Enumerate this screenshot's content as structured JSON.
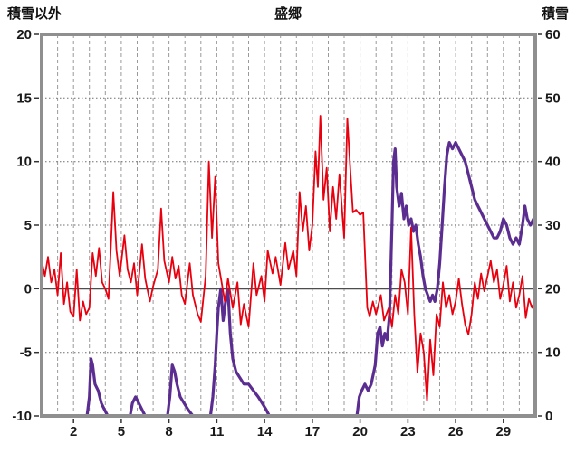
{
  "header": {
    "left": "積雪以外",
    "center": "盛郷",
    "right": "積雪"
  },
  "chart_data": {
    "type": "line",
    "title": "盛郷",
    "x_range": [
      0,
      31
    ],
    "x_ticks": [
      2,
      5,
      8,
      11,
      14,
      17,
      20,
      23,
      26,
      29
    ],
    "grid": {
      "v_start": 1,
      "v_end": 30,
      "v_step": 1
    },
    "left_axis": {
      "label": "積雪以外",
      "range": [
        -10,
        20
      ],
      "ticks": [
        20,
        15,
        10,
        5,
        0,
        -5,
        -10
      ]
    },
    "right_axis": {
      "label": "積雪",
      "range": [
        0,
        60
      ],
      "ticks": [
        60,
        50,
        40,
        30,
        20,
        10,
        0
      ]
    },
    "zero_value": 0,
    "colors": {
      "frame": "#8f8f8f",
      "grid_v": "#9a9a9a",
      "grid_h": "#6f6f6f",
      "zero": "#4d4d4d",
      "tick": "#333333",
      "temp": "#e8000e",
      "snow": "#5c2d91"
    },
    "series": [
      {
        "name": "積雪",
        "axis": "right",
        "color_key": "snow",
        "width": 3.2,
        "points": [
          [
            0,
            0
          ],
          [
            2.85,
            0
          ],
          [
            3.0,
            3
          ],
          [
            3.1,
            9
          ],
          [
            3.2,
            8
          ],
          [
            3.35,
            5
          ],
          [
            3.55,
            4
          ],
          [
            3.75,
            2
          ],
          [
            3.95,
            1
          ],
          [
            4.15,
            0
          ],
          [
            5.55,
            0
          ],
          [
            5.7,
            2
          ],
          [
            5.9,
            3
          ],
          [
            6.1,
            2
          ],
          [
            6.3,
            1
          ],
          [
            6.5,
            0
          ],
          [
            7.9,
            0
          ],
          [
            8.05,
            3
          ],
          [
            8.2,
            8
          ],
          [
            8.35,
            7
          ],
          [
            8.5,
            5
          ],
          [
            8.7,
            3
          ],
          [
            8.95,
            2
          ],
          [
            9.2,
            1
          ],
          [
            9.5,
            0
          ],
          [
            10.6,
            0
          ],
          [
            10.75,
            3
          ],
          [
            10.9,
            8
          ],
          [
            11.0,
            13
          ],
          [
            11.1,
            17
          ],
          [
            11.25,
            20
          ],
          [
            11.4,
            15
          ],
          [
            11.55,
            18
          ],
          [
            11.7,
            20
          ],
          [
            11.85,
            13
          ],
          [
            12.0,
            9
          ],
          [
            12.2,
            7
          ],
          [
            12.45,
            6
          ],
          [
            12.7,
            5
          ],
          [
            13.0,
            5
          ],
          [
            13.3,
            4
          ],
          [
            13.6,
            3
          ],
          [
            13.85,
            2
          ],
          [
            14.1,
            1
          ],
          [
            14.3,
            0
          ],
          [
            19.8,
            0
          ],
          [
            19.95,
            3
          ],
          [
            20.1,
            4
          ],
          [
            20.3,
            5
          ],
          [
            20.5,
            4
          ],
          [
            20.7,
            5
          ],
          [
            20.95,
            8
          ],
          [
            21.1,
            13
          ],
          [
            21.25,
            14
          ],
          [
            21.4,
            11
          ],
          [
            21.55,
            13
          ],
          [
            21.7,
            12
          ],
          [
            21.85,
            16
          ],
          [
            22.0,
            30
          ],
          [
            22.1,
            40
          ],
          [
            22.2,
            42
          ],
          [
            22.3,
            36
          ],
          [
            22.45,
            33
          ],
          [
            22.6,
            35
          ],
          [
            22.75,
            31
          ],
          [
            22.9,
            33
          ],
          [
            23.05,
            30
          ],
          [
            23.2,
            31
          ],
          [
            23.35,
            29
          ],
          [
            23.5,
            30
          ],
          [
            23.65,
            27
          ],
          [
            23.8,
            25
          ],
          [
            23.95,
            22
          ],
          [
            24.1,
            20
          ],
          [
            24.25,
            19
          ],
          [
            24.4,
            18
          ],
          [
            24.55,
            19
          ],
          [
            24.7,
            18
          ],
          [
            24.85,
            20
          ],
          [
            25.0,
            24
          ],
          [
            25.15,
            30
          ],
          [
            25.3,
            36
          ],
          [
            25.45,
            41
          ],
          [
            25.6,
            43
          ],
          [
            25.8,
            42
          ],
          [
            26.0,
            43
          ],
          [
            26.2,
            42
          ],
          [
            26.4,
            41
          ],
          [
            26.6,
            40
          ],
          [
            26.8,
            38
          ],
          [
            27.0,
            36
          ],
          [
            27.2,
            34
          ],
          [
            27.4,
            33
          ],
          [
            27.6,
            32
          ],
          [
            27.8,
            31
          ],
          [
            28.0,
            30
          ],
          [
            28.2,
            29
          ],
          [
            28.4,
            28
          ],
          [
            28.6,
            28
          ],
          [
            28.8,
            29
          ],
          [
            29.0,
            31
          ],
          [
            29.2,
            30
          ],
          [
            29.4,
            28
          ],
          [
            29.6,
            27
          ],
          [
            29.8,
            28
          ],
          [
            30.0,
            27
          ],
          [
            30.2,
            30
          ],
          [
            30.35,
            33
          ],
          [
            30.5,
            31
          ],
          [
            30.7,
            30
          ],
          [
            30.9,
            31
          ],
          [
            31,
            30
          ]
        ]
      },
      {
        "name": "積雪以外",
        "axis": "left",
        "color_key": "temp",
        "width": 1.8,
        "points": [
          [
            0,
            2.2
          ],
          [
            0.2,
            1.0
          ],
          [
            0.4,
            2.5
          ],
          [
            0.6,
            0.5
          ],
          [
            0.8,
            1.5
          ],
          [
            1.0,
            -0.5
          ],
          [
            1.2,
            2.8
          ],
          [
            1.4,
            -1.2
          ],
          [
            1.6,
            0.5
          ],
          [
            1.8,
            -1.8
          ],
          [
            2.0,
            -2.2
          ],
          [
            2.2,
            1.5
          ],
          [
            2.4,
            -2.5
          ],
          [
            2.6,
            -1.0
          ],
          [
            2.8,
            -2.0
          ],
          [
            3.0,
            -1.5
          ],
          [
            3.2,
            2.8
          ],
          [
            3.4,
            1.0
          ],
          [
            3.6,
            3.2
          ],
          [
            3.8,
            0.5
          ],
          [
            4.0,
            0.0
          ],
          [
            4.2,
            -0.8
          ],
          [
            4.5,
            7.6
          ],
          [
            4.7,
            3.0
          ],
          [
            4.9,
            1.0
          ],
          [
            5.2,
            4.2
          ],
          [
            5.4,
            1.5
          ],
          [
            5.6,
            0.5
          ],
          [
            5.8,
            2.0
          ],
          [
            6.0,
            -0.5
          ],
          [
            6.3,
            3.5
          ],
          [
            6.5,
            0.8
          ],
          [
            6.8,
            -1.0
          ],
          [
            7.0,
            0.2
          ],
          [
            7.3,
            1.5
          ],
          [
            7.5,
            6.3
          ],
          [
            7.7,
            2.2
          ],
          [
            8.0,
            0.5
          ],
          [
            8.2,
            2.5
          ],
          [
            8.4,
            0.8
          ],
          [
            8.6,
            1.8
          ],
          [
            8.8,
            -0.5
          ],
          [
            9.0,
            -1.2
          ],
          [
            9.3,
            2.0
          ],
          [
            9.5,
            -0.5
          ],
          [
            9.8,
            -2.0
          ],
          [
            10.0,
            -2.6
          ],
          [
            10.3,
            1.0
          ],
          [
            10.5,
            10.0
          ],
          [
            10.7,
            4.0
          ],
          [
            10.9,
            8.8
          ],
          [
            11.1,
            2.0
          ],
          [
            11.3,
            0.5
          ],
          [
            11.5,
            -1.0
          ],
          [
            11.7,
            0.8
          ],
          [
            12.0,
            -1.5
          ],
          [
            12.3,
            0.5
          ],
          [
            12.5,
            -2.8
          ],
          [
            12.7,
            -1.2
          ],
          [
            13.0,
            -3.0
          ],
          [
            13.3,
            2.0
          ],
          [
            13.5,
            -0.5
          ],
          [
            13.8,
            1.0
          ],
          [
            14.0,
            -1.0
          ],
          [
            14.2,
            3.0
          ],
          [
            14.5,
            1.2
          ],
          [
            14.7,
            2.5
          ],
          [
            15.0,
            0.3
          ],
          [
            15.3,
            3.6
          ],
          [
            15.5,
            1.5
          ],
          [
            15.8,
            3.0
          ],
          [
            16.0,
            1.0
          ],
          [
            16.2,
            7.6
          ],
          [
            16.4,
            4.5
          ],
          [
            16.6,
            6.5
          ],
          [
            16.8,
            3.0
          ],
          [
            17.0,
            5.0
          ],
          [
            17.2,
            10.8
          ],
          [
            17.35,
            8.0
          ],
          [
            17.5,
            13.6
          ],
          [
            17.7,
            7.0
          ],
          [
            17.9,
            9.5
          ],
          [
            18.1,
            4.5
          ],
          [
            18.3,
            8.0
          ],
          [
            18.5,
            5.5
          ],
          [
            18.7,
            9.0
          ],
          [
            19.0,
            4.0
          ],
          [
            19.2,
            13.4
          ],
          [
            19.4,
            9.0
          ],
          [
            19.55,
            6.0
          ],
          [
            19.75,
            6.2
          ],
          [
            20.0,
            5.8
          ],
          [
            20.2,
            6.0
          ],
          [
            20.45,
            -1.5
          ],
          [
            20.6,
            -2.2
          ],
          [
            20.8,
            -1.0
          ],
          [
            21.0,
            -2.0
          ],
          [
            21.3,
            -0.5
          ],
          [
            21.5,
            -2.5
          ],
          [
            21.8,
            -1.5
          ],
          [
            22.0,
            -3.0
          ],
          [
            22.2,
            -0.5
          ],
          [
            22.4,
            -2.0
          ],
          [
            22.6,
            1.5
          ],
          [
            22.8,
            0.5
          ],
          [
            23.0,
            -2.0
          ],
          [
            23.2,
            4.8
          ],
          [
            23.4,
            -2.0
          ],
          [
            23.6,
            -6.6
          ],
          [
            23.8,
            -3.5
          ],
          [
            24.0,
            -5.0
          ],
          [
            24.2,
            -8.8
          ],
          [
            24.4,
            -4.0
          ],
          [
            24.6,
            -6.8
          ],
          [
            24.8,
            -2.0
          ],
          [
            25.0,
            -3.0
          ],
          [
            25.2,
            0.5
          ],
          [
            25.4,
            -1.5
          ],
          [
            25.6,
            -0.5
          ],
          [
            25.8,
            -2.0
          ],
          [
            26.0,
            -1.0
          ],
          [
            26.2,
            0.8
          ],
          [
            26.4,
            -1.2
          ],
          [
            26.6,
            -2.8
          ],
          [
            26.8,
            -3.6
          ],
          [
            27.0,
            -2.0
          ],
          [
            27.2,
            0.5
          ],
          [
            27.4,
            -0.8
          ],
          [
            27.6,
            1.2
          ],
          [
            27.8,
            -0.2
          ],
          [
            28.0,
            1.0
          ],
          [
            28.2,
            2.2
          ],
          [
            28.4,
            0.5
          ],
          [
            28.6,
            1.5
          ],
          [
            28.8,
            -0.8
          ],
          [
            29.0,
            0.3
          ],
          [
            29.2,
            1.8
          ],
          [
            29.4,
            -1.0
          ],
          [
            29.6,
            0.5
          ],
          [
            29.8,
            -1.5
          ],
          [
            30.0,
            -0.5
          ],
          [
            30.2,
            1.0
          ],
          [
            30.4,
            -2.3
          ],
          [
            30.6,
            -0.8
          ],
          [
            30.8,
            -1.5
          ],
          [
            31.0,
            -0.8
          ]
        ]
      }
    ]
  }
}
